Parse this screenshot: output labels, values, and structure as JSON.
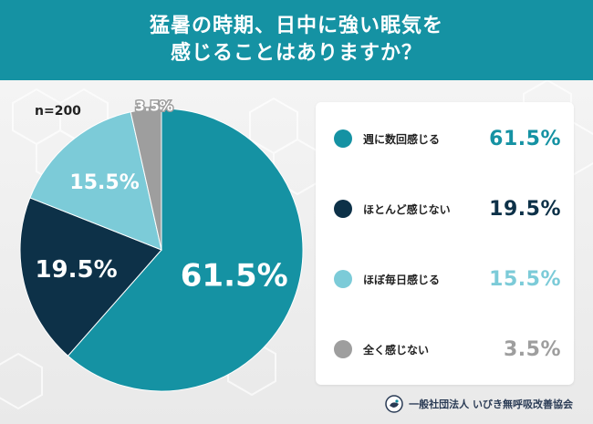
{
  "header": {
    "title_line1": "猛暑の時期、日中に強い眠気を",
    "title_line2": "感じることはありますか？"
  },
  "sample_label": "n=200",
  "footer": {
    "org": "一般社団法人 いびき無呼吸改善協会"
  },
  "colors": {
    "header_bg": "#1592a3",
    "slice_teal": "#1592a3",
    "slice_navy": "#0d3148",
    "slice_light": "#7ccbd8",
    "slice_gray": "#9e9e9e"
  },
  "chart_data": {
    "type": "pie",
    "title": "猛暑の時期、日中に強い眠気を感じることはありますか？",
    "categories": [
      "週に数回感じる",
      "ほとんど感じない",
      "ほぼ毎日感じる",
      "全く感じない"
    ],
    "values": [
      61.5,
      19.5,
      15.5,
      3.5
    ],
    "labels": [
      "61.5%",
      "19.5%",
      "15.5%",
      "3.5%"
    ],
    "colors": [
      "#1592a3",
      "#0d3148",
      "#7ccbd8",
      "#9e9e9e"
    ],
    "legend_position": "right",
    "n": "n=200"
  }
}
